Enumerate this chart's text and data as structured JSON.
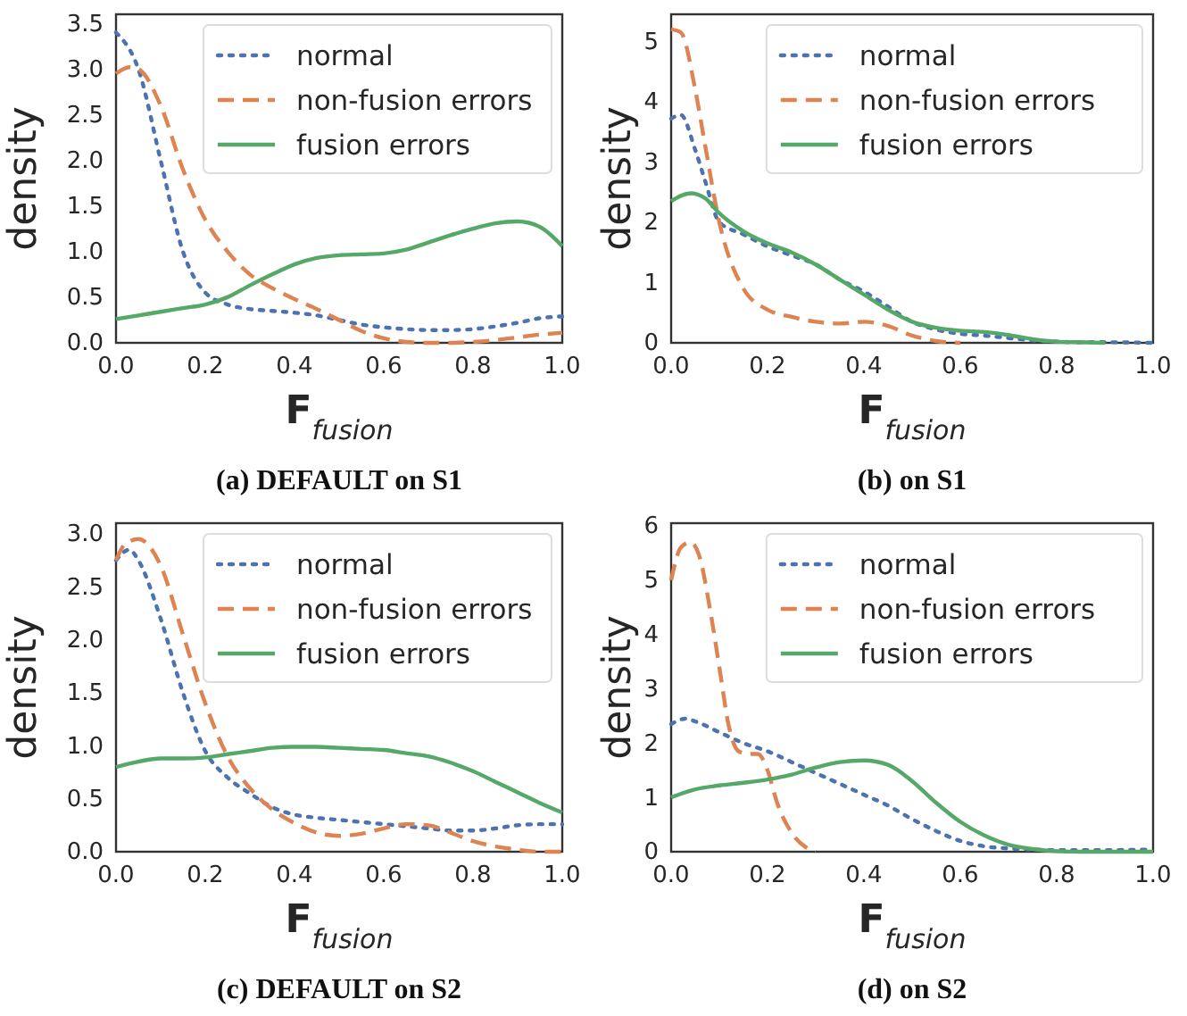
{
  "chart_data": [
    {
      "type": "line",
      "xlabel": "F$_{fusion}$",
      "ylabel": "density",
      "annotations": [
        "(a) DEFAULT on S1"
      ],
      "xlim": [
        0,
        1
      ],
      "ylim": [
        0,
        3.6
      ],
      "xticks": [
        {
          "value": 0,
          "label": "0.0"
        },
        {
          "value": 0.2,
          "label": "0.2"
        },
        {
          "value": 0.4,
          "label": "0.4"
        },
        {
          "value": 0.6,
          "label": "0.6"
        },
        {
          "value": 0.8,
          "label": "0.8"
        },
        {
          "value": 1,
          "label": "1.0"
        }
      ],
      "yticks": [
        {
          "value": 0,
          "label": "0.0"
        },
        {
          "value": 0.5,
          "label": "0.5"
        },
        {
          "value": 1,
          "label": "1.0"
        },
        {
          "value": 1.5,
          "label": "1.5"
        },
        {
          "value": 2,
          "label": "2.0"
        },
        {
          "value": 2.5,
          "label": "2.5"
        },
        {
          "value": 3,
          "label": "3.0"
        },
        {
          "value": 3.5,
          "label": "3.5"
        }
      ],
      "grid": false,
      "legend": "top right",
      "series": [
        {
          "name": "normal",
          "color": "#4c72b0",
          "line_style": "dotted",
          "x": [
            0,
            0.05,
            0.1,
            0.15,
            0.2,
            0.25,
            0.3,
            0.35,
            0.4,
            0.45,
            0.5,
            0.55,
            0.6,
            0.65,
            0.7,
            0.75,
            0.8,
            0.85,
            0.9,
            0.95,
            1
          ],
          "values": [
            3.4,
            3.0,
            2.0,
            1.0,
            0.55,
            0.42,
            0.37,
            0.35,
            0.33,
            0.3,
            0.25,
            0.2,
            0.17,
            0.15,
            0.14,
            0.14,
            0.15,
            0.18,
            0.22,
            0.27,
            0.29
          ]
        },
        {
          "name": "non-fusion errors",
          "color": "#dd8452",
          "line_style": "dashed",
          "x": [
            0,
            0.03,
            0.05,
            0.1,
            0.15,
            0.2,
            0.25,
            0.3,
            0.35,
            0.4,
            0.45,
            0.5,
            0.55,
            0.6,
            0.65,
            0.7,
            0.75,
            0.8,
            0.85,
            0.9,
            0.95,
            1
          ],
          "values": [
            2.95,
            3.02,
            3.0,
            2.6,
            1.9,
            1.35,
            1.0,
            0.75,
            0.6,
            0.48,
            0.37,
            0.25,
            0.13,
            0.05,
            0.01,
            0.0,
            0.0,
            0.01,
            0.03,
            0.06,
            0.09,
            0.11
          ]
        },
        {
          "name": "fusion errors",
          "color": "#55a868",
          "line_style": "solid",
          "x": [
            0,
            0.05,
            0.1,
            0.15,
            0.2,
            0.25,
            0.3,
            0.35,
            0.4,
            0.45,
            0.5,
            0.55,
            0.6,
            0.65,
            0.7,
            0.75,
            0.8,
            0.85,
            0.9,
            0.95,
            1
          ],
          "values": [
            0.26,
            0.3,
            0.34,
            0.38,
            0.42,
            0.5,
            0.63,
            0.75,
            0.86,
            0.93,
            0.96,
            0.97,
            0.98,
            1.02,
            1.1,
            1.18,
            1.25,
            1.31,
            1.33,
            1.27,
            1.06
          ]
        }
      ]
    },
    {
      "type": "line",
      "xlabel": "F$_{fusion}$",
      "ylabel": "density",
      "annotations": [
        "(b) on S1"
      ],
      "xlim": [
        0,
        1
      ],
      "ylim": [
        0,
        5.45
      ],
      "xticks": [
        {
          "value": 0,
          "label": "0.0"
        },
        {
          "value": 0.2,
          "label": "0.2"
        },
        {
          "value": 0.4,
          "label": "0.4"
        },
        {
          "value": 0.6,
          "label": "0.6"
        },
        {
          "value": 0.8,
          "label": "0.8"
        },
        {
          "value": 1,
          "label": "1.0"
        }
      ],
      "yticks": [
        0,
        1,
        2,
        3,
        4,
        5
      ],
      "grid": false,
      "legend": "top right",
      "series": [
        {
          "name": "normal",
          "color": "#4c72b0",
          "line_style": "dotted",
          "x": [
            0,
            0.02,
            0.05,
            0.07,
            0.1,
            0.15,
            0.2,
            0.25,
            0.3,
            0.35,
            0.4,
            0.45,
            0.5,
            0.55,
            0.6,
            0.65,
            0.7,
            0.75,
            0.8,
            0.85,
            0.9,
            1
          ],
          "values": [
            3.72,
            3.78,
            3.2,
            2.7,
            2.0,
            1.8,
            1.6,
            1.45,
            1.3,
            1.05,
            0.85,
            0.6,
            0.35,
            0.22,
            0.15,
            0.12,
            0.08,
            0.04,
            0.02,
            0.01,
            0.01,
            0.0
          ]
        },
        {
          "name": "non-fusion errors",
          "color": "#dd8452",
          "line_style": "dashed",
          "x": [
            0,
            0.02,
            0.05,
            0.07,
            0.1,
            0.15,
            0.2,
            0.25,
            0.3,
            0.35,
            0.4,
            0.45,
            0.5,
            0.55,
            0.6
          ],
          "values": [
            5.2,
            5.15,
            4.2,
            3.3,
            2.0,
            0.9,
            0.55,
            0.43,
            0.35,
            0.32,
            0.35,
            0.28,
            0.12,
            0.03,
            0.0
          ]
        },
        {
          "name": "fusion errors",
          "color": "#55a868",
          "line_style": "solid",
          "x": [
            0,
            0.04,
            0.07,
            0.1,
            0.15,
            0.2,
            0.25,
            0.3,
            0.35,
            0.4,
            0.45,
            0.5,
            0.55,
            0.6,
            0.65,
            0.7,
            0.75,
            0.8,
            0.85,
            0.9
          ],
          "values": [
            2.35,
            2.48,
            2.4,
            2.15,
            1.85,
            1.65,
            1.5,
            1.3,
            1.05,
            0.8,
            0.55,
            0.35,
            0.25,
            0.2,
            0.18,
            0.13,
            0.06,
            0.02,
            0.01,
            0.0
          ]
        }
      ]
    },
    {
      "type": "line",
      "xlabel": "F$_{fusion}$",
      "ylabel": "density",
      "annotations": [
        "(c) DEFAULT on S2"
      ],
      "xlim": [
        0,
        1
      ],
      "ylim": [
        0,
        3.1
      ],
      "xticks": [
        {
          "value": 0,
          "label": "0.0"
        },
        {
          "value": 0.2,
          "label": "0.2"
        },
        {
          "value": 0.4,
          "label": "0.4"
        },
        {
          "value": 0.6,
          "label": "0.6"
        },
        {
          "value": 0.8,
          "label": "0.8"
        },
        {
          "value": 1,
          "label": "1.0"
        }
      ],
      "yticks": [
        {
          "value": 0,
          "label": "0.0"
        },
        {
          "value": 0.5,
          "label": "0.5"
        },
        {
          "value": 1,
          "label": "1.0"
        },
        {
          "value": 1.5,
          "label": "1.5"
        },
        {
          "value": 2,
          "label": "2.0"
        },
        {
          "value": 2.5,
          "label": "2.5"
        },
        {
          "value": 3,
          "label": "3.0"
        }
      ],
      "grid": false,
      "legend": "top right",
      "series": [
        {
          "name": "normal",
          "color": "#4c72b0",
          "line_style": "dotted",
          "x": [
            0,
            0.03,
            0.05,
            0.1,
            0.15,
            0.2,
            0.25,
            0.3,
            0.35,
            0.4,
            0.45,
            0.5,
            0.55,
            0.6,
            0.65,
            0.7,
            0.75,
            0.8,
            0.85,
            0.9,
            0.95,
            1
          ],
          "values": [
            2.75,
            2.85,
            2.75,
            2.2,
            1.5,
            0.95,
            0.7,
            0.55,
            0.42,
            0.35,
            0.32,
            0.3,
            0.28,
            0.26,
            0.24,
            0.22,
            0.2,
            0.2,
            0.22,
            0.25,
            0.26,
            0.26
          ]
        },
        {
          "name": "non-fusion errors",
          "color": "#dd8452",
          "line_style": "dashed",
          "x": [
            0,
            0.02,
            0.05,
            0.1,
            0.15,
            0.2,
            0.25,
            0.3,
            0.35,
            0.4,
            0.45,
            0.5,
            0.55,
            0.6,
            0.65,
            0.7,
            0.75,
            0.8,
            0.85,
            0.9,
            0.95,
            1
          ],
          "values": [
            2.75,
            2.9,
            2.95,
            2.7,
            2.05,
            1.4,
            0.9,
            0.6,
            0.4,
            0.27,
            0.18,
            0.15,
            0.17,
            0.22,
            0.26,
            0.25,
            0.18,
            0.1,
            0.05,
            0.02,
            0.0,
            0.0
          ]
        },
        {
          "name": "fusion errors",
          "color": "#55a868",
          "line_style": "solid",
          "x": [
            0,
            0.05,
            0.1,
            0.15,
            0.2,
            0.25,
            0.3,
            0.35,
            0.4,
            0.45,
            0.5,
            0.55,
            0.6,
            0.65,
            0.7,
            0.75,
            0.8,
            0.85,
            0.9,
            0.95,
            1
          ],
          "values": [
            0.8,
            0.85,
            0.88,
            0.88,
            0.89,
            0.92,
            0.95,
            0.98,
            0.99,
            0.99,
            0.98,
            0.97,
            0.96,
            0.93,
            0.9,
            0.84,
            0.76,
            0.66,
            0.56,
            0.46,
            0.37
          ]
        }
      ]
    },
    {
      "type": "line",
      "xlabel": "F$_{fusion}$",
      "ylabel": "density",
      "annotations": [
        "(d) on S2"
      ],
      "xlim": [
        0,
        1
      ],
      "ylim": [
        0,
        6.05
      ],
      "xticks": [
        {
          "value": 0,
          "label": "0.0"
        },
        {
          "value": 0.2,
          "label": "0.2"
        },
        {
          "value": 0.4,
          "label": "0.4"
        },
        {
          "value": 0.6,
          "label": "0.6"
        },
        {
          "value": 0.8,
          "label": "0.8"
        },
        {
          "value": 1,
          "label": "1.0"
        }
      ],
      "yticks": [
        0,
        1,
        2,
        3,
        4,
        5,
        6
      ],
      "grid": false,
      "legend": "top right",
      "series": [
        {
          "name": "normal",
          "color": "#4c72b0",
          "line_style": "dotted",
          "x": [
            0,
            0.03,
            0.05,
            0.1,
            0.15,
            0.2,
            0.25,
            0.3,
            0.35,
            0.4,
            0.45,
            0.5,
            0.55,
            0.6,
            0.65,
            0.7,
            0.75,
            0.8,
            0.9,
            1
          ],
          "values": [
            2.35,
            2.45,
            2.4,
            2.2,
            2.0,
            1.85,
            1.65,
            1.45,
            1.25,
            1.05,
            0.85,
            0.6,
            0.38,
            0.2,
            0.1,
            0.06,
            0.04,
            0.03,
            0.03,
            0.04
          ]
        },
        {
          "name": "non-fusion errors",
          "color": "#dd8452",
          "line_style": "dashed",
          "x": [
            0,
            0.02,
            0.04,
            0.06,
            0.08,
            0.1,
            0.12,
            0.14,
            0.16,
            0.18,
            0.2,
            0.22,
            0.25,
            0.28,
            0.3
          ],
          "values": [
            5.0,
            5.6,
            5.7,
            5.4,
            4.5,
            3.4,
            2.3,
            1.85,
            1.8,
            1.8,
            1.5,
            0.9,
            0.35,
            0.08,
            0.0
          ]
        },
        {
          "name": "fusion errors",
          "color": "#55a868",
          "line_style": "solid",
          "x": [
            0,
            0.05,
            0.1,
            0.15,
            0.2,
            0.25,
            0.3,
            0.35,
            0.4,
            0.45,
            0.5,
            0.55,
            0.6,
            0.65,
            0.7,
            0.75,
            0.8,
            0.85,
            1
          ],
          "values": [
            1.0,
            1.15,
            1.22,
            1.27,
            1.33,
            1.42,
            1.55,
            1.65,
            1.68,
            1.6,
            1.3,
            0.9,
            0.55,
            0.3,
            0.13,
            0.05,
            0.01,
            0.0,
            0.0
          ]
        }
      ]
    }
  ]
}
